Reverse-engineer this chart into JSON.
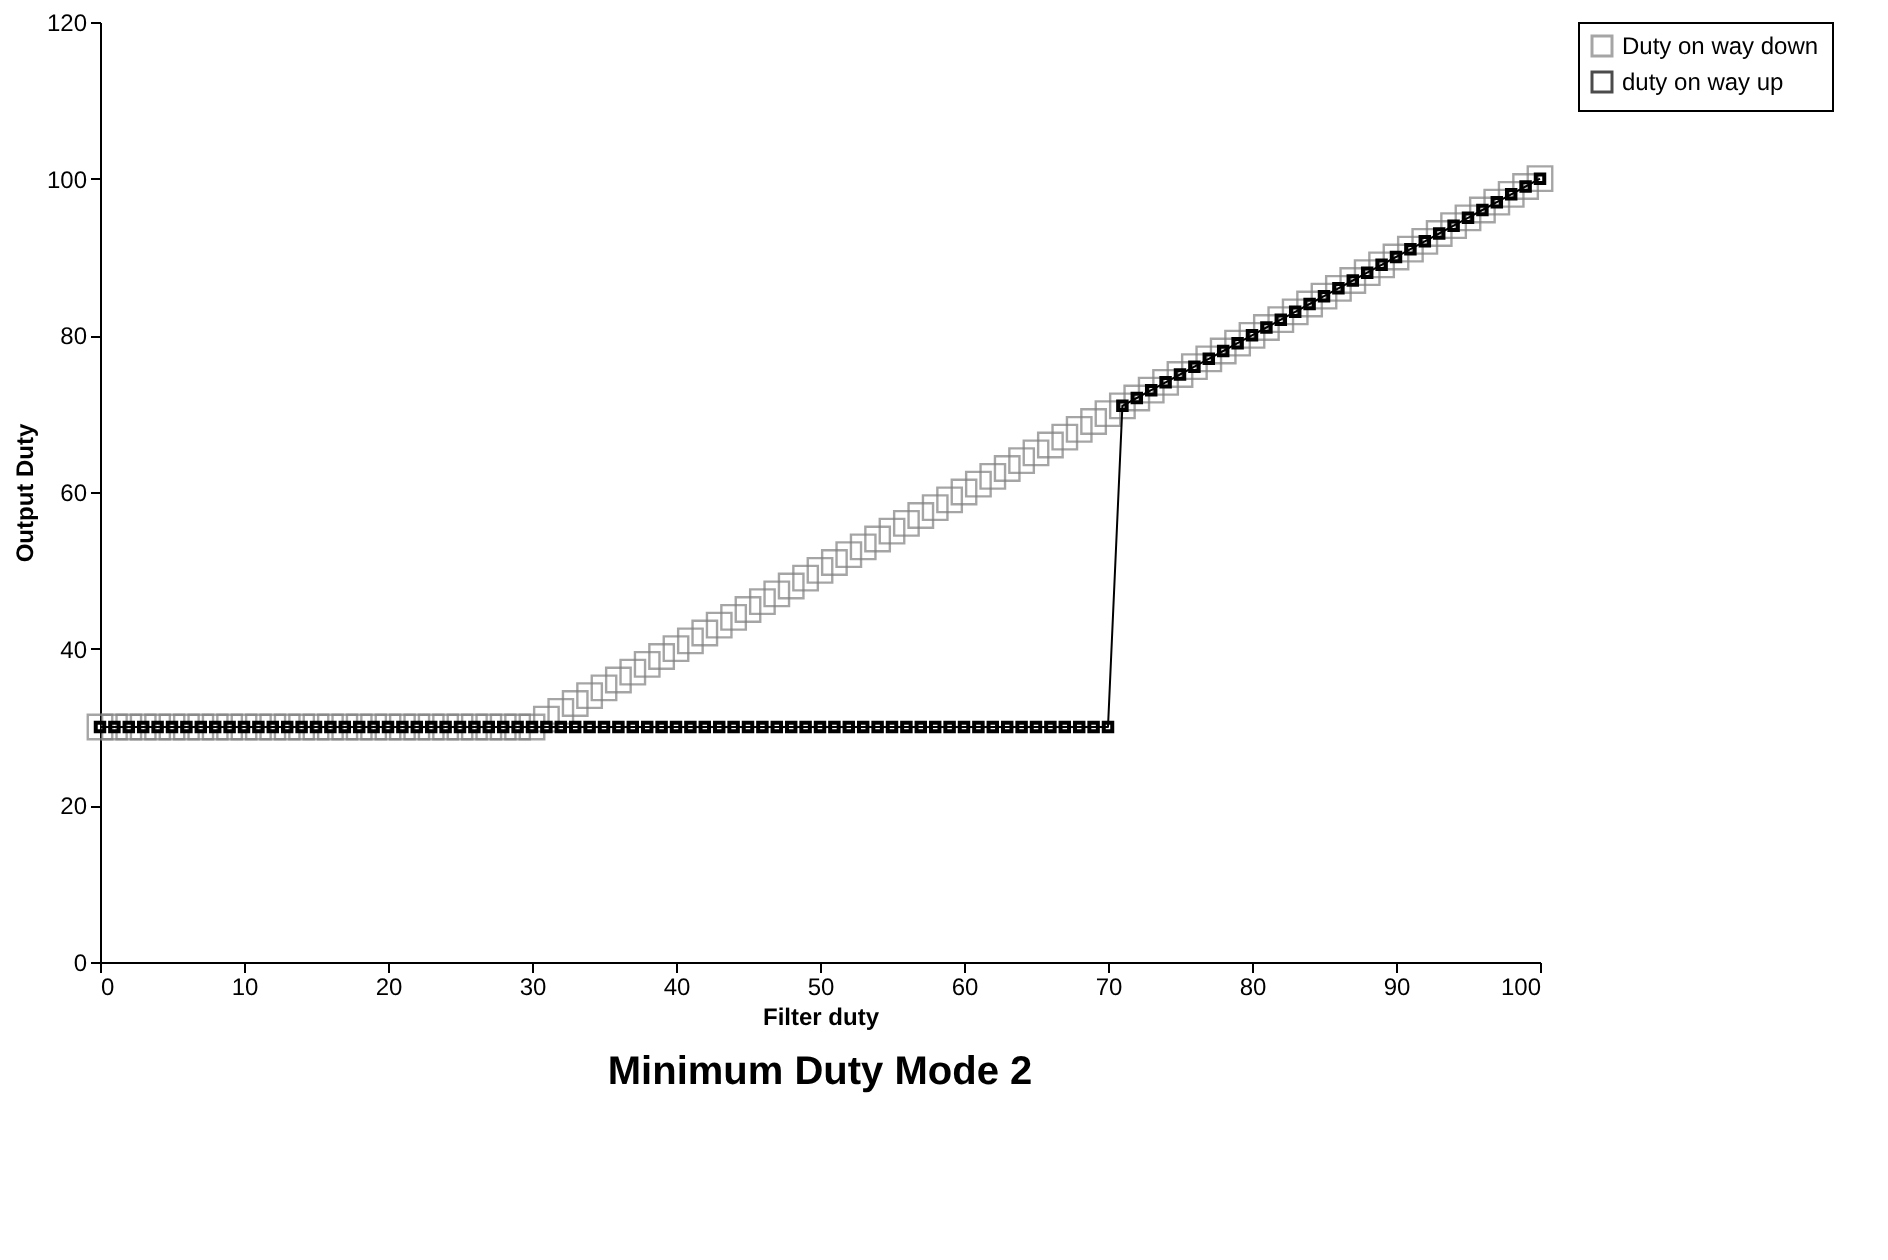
{
  "chart_data": {
    "type": "line",
    "title": "Minimum Duty Mode 2",
    "xlabel": "Filter duty",
    "ylabel": "Output Duty",
    "x": [
      0,
      1,
      2,
      3,
      4,
      5,
      6,
      7,
      8,
      9,
      10,
      11,
      12,
      13,
      14,
      15,
      16,
      17,
      18,
      19,
      20,
      21,
      22,
      23,
      24,
      25,
      26,
      27,
      28,
      29,
      30,
      31,
      32,
      33,
      34,
      35,
      36,
      37,
      38,
      39,
      40,
      41,
      42,
      43,
      44,
      45,
      46,
      47,
      48,
      49,
      50,
      51,
      52,
      53,
      54,
      55,
      56,
      57,
      58,
      59,
      60,
      61,
      62,
      63,
      64,
      65,
      66,
      67,
      68,
      69,
      70,
      71,
      72,
      73,
      74,
      75,
      76,
      77,
      78,
      79,
      80,
      81,
      82,
      83,
      84,
      85,
      86,
      87,
      88,
      89,
      90,
      91,
      92,
      93,
      94,
      95,
      96,
      97,
      98,
      99,
      100
    ],
    "series": [
      {
        "name": "Duty on way down",
        "type": "scatter",
        "marker": "square",
        "color": "#808080",
        "values": [
          30,
          30,
          30,
          30,
          30,
          30,
          30,
          30,
          30,
          30,
          30,
          30,
          30,
          30,
          30,
          30,
          30,
          30,
          30,
          30,
          30,
          30,
          30,
          30,
          30,
          30,
          30,
          30,
          30,
          30,
          30,
          31,
          32,
          33,
          34,
          35,
          36,
          37,
          38,
          39,
          40,
          41,
          42,
          43,
          44,
          45,
          46,
          47,
          48,
          49,
          50,
          51,
          52,
          53,
          54,
          55,
          56,
          57,
          58,
          59,
          60,
          61,
          62,
          63,
          64,
          65,
          66,
          67,
          68,
          69,
          70,
          71,
          72,
          73,
          74,
          75,
          76,
          77,
          78,
          79,
          80,
          81,
          82,
          83,
          84,
          85,
          86,
          87,
          88,
          89,
          90,
          91,
          92,
          93,
          94,
          95,
          96,
          97,
          98,
          99,
          100
        ]
      },
      {
        "name": "duty on way up",
        "marker": "square",
        "color": "#000000",
        "values": [
          30,
          30,
          30,
          30,
          30,
          30,
          30,
          30,
          30,
          30,
          30,
          30,
          30,
          30,
          30,
          30,
          30,
          30,
          30,
          30,
          30,
          30,
          30,
          30,
          30,
          30,
          30,
          30,
          30,
          30,
          30,
          30,
          30,
          30,
          30,
          30,
          30,
          30,
          30,
          30,
          30,
          30,
          30,
          30,
          30,
          30,
          30,
          30,
          30,
          30,
          30,
          30,
          30,
          30,
          30,
          30,
          30,
          30,
          30,
          30,
          30,
          30,
          30,
          30,
          30,
          30,
          30,
          30,
          30,
          30,
          30,
          71,
          72,
          73,
          74,
          75,
          76,
          77,
          78,
          79,
          80,
          81,
          82,
          83,
          84,
          85,
          86,
          87,
          88,
          89,
          90,
          91,
          92,
          93,
          94,
          95,
          96,
          97,
          98,
          99,
          100
        ]
      }
    ],
    "xlim": [
      0,
      100
    ],
    "xticks": [
      0,
      10,
      20,
      30,
      40,
      50,
      60,
      70,
      80,
      90,
      100
    ],
    "ylim": [
      0,
      120
    ],
    "yticks": [
      0,
      20,
      40,
      60,
      80,
      100,
      120
    ],
    "grid": false,
    "legend": "right"
  }
}
